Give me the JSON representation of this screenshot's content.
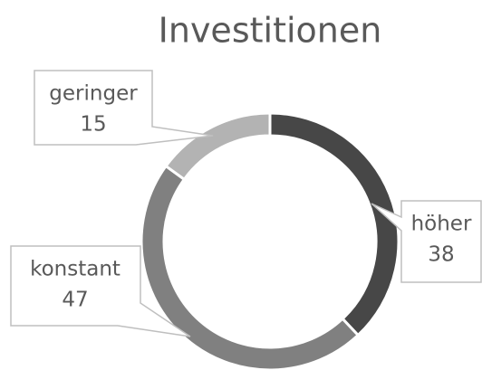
{
  "chart_data": {
    "type": "donut",
    "title": "Investitionen",
    "categories": [
      "höher",
      "konstant",
      "geringer"
    ],
    "values": [
      38,
      47,
      15
    ],
    "colors": [
      "#474747",
      "#808080",
      "#b3b3b3"
    ]
  }
}
